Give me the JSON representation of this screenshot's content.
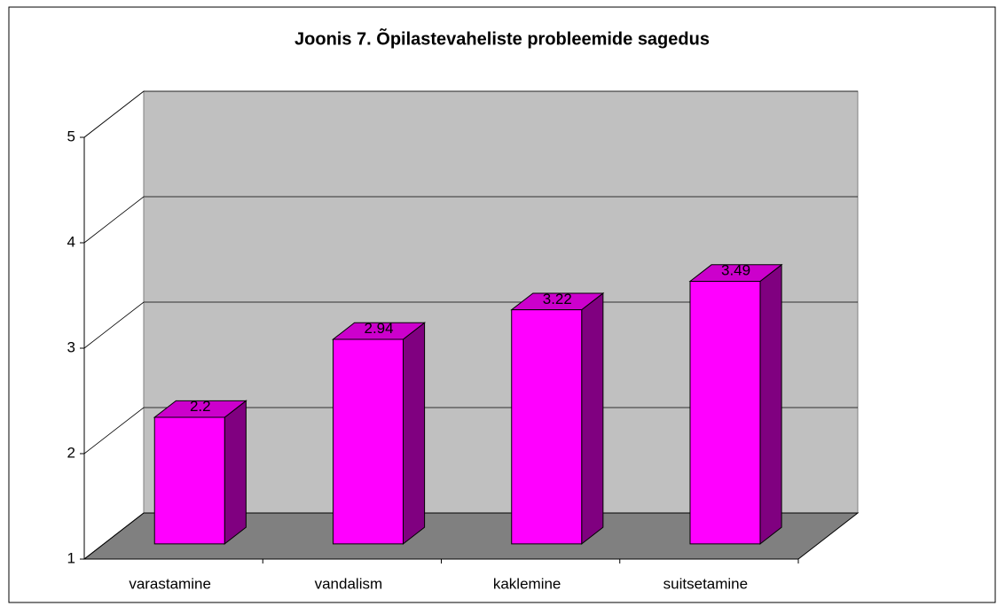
{
  "chart_data": {
    "type": "bar3d",
    "title": "Joonis 7. Õpilastevaheliste probleemide sagedus",
    "categories": [
      "varastamine",
      "vandalism",
      "kaklemine",
      "suitsetamine"
    ],
    "values": [
      2.2,
      2.94,
      3.22,
      3.49
    ],
    "color": "#ff00ff",
    "ylim": [
      1,
      5
    ],
    "yticks": [
      1,
      2,
      3,
      4,
      5
    ],
    "grid": true
  }
}
